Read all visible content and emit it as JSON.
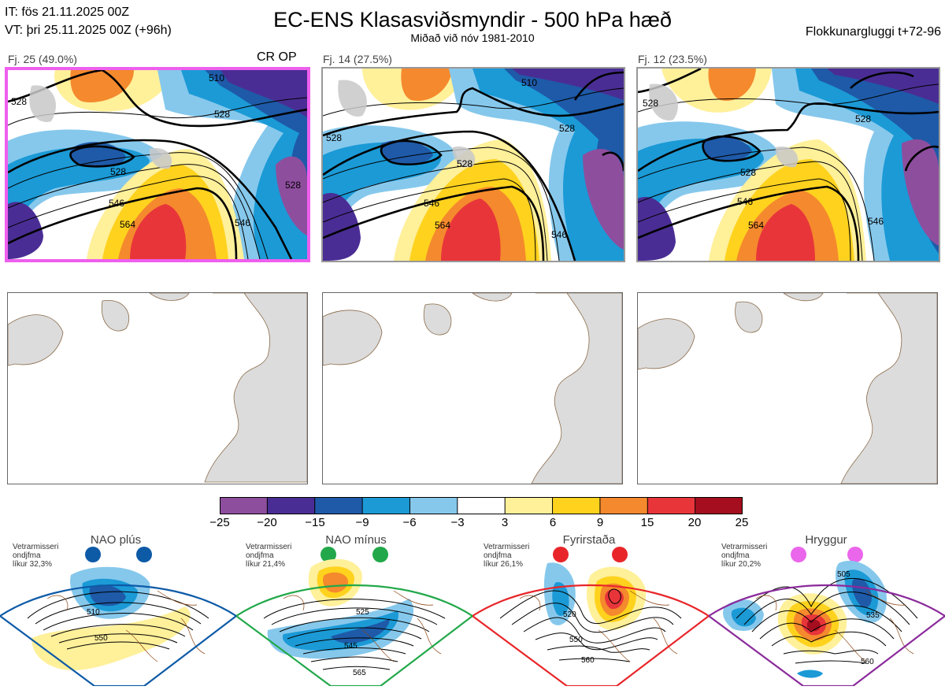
{
  "header": {
    "init_time": "IT: fös 21.11.2025 00Z",
    "valid_time": "VT: þri 25.11.2025 00Z  (+96h)",
    "title": "EC-ENS Klasasviðsmyndir - 500 hPa hæð",
    "subtitle": "Miðað við nóv 1981-2010",
    "window": "Flokkunargluggi t+72-96"
  },
  "clusters": [
    {
      "label": "Fj. 25 (49.0%)",
      "members": 25,
      "percent": 49.0,
      "selected": true,
      "tag": "CR OP",
      "contour_labels": [
        "510",
        "528",
        "528",
        "528",
        "546",
        "564",
        "546",
        "528"
      ]
    },
    {
      "label": "Fj. 14 (27.5%)",
      "members": 14,
      "percent": 27.5,
      "selected": false,
      "tag": "",
      "contour_labels": [
        "510",
        "528",
        "528",
        "546",
        "564",
        "546",
        "528"
      ]
    },
    {
      "label": "Fj. 12 (23.5%)",
      "members": 12,
      "percent": 23.5,
      "selected": false,
      "tag": "",
      "contour_labels": [
        "528",
        "528",
        "528",
        "546",
        "564",
        "546"
      ]
    }
  ],
  "colorbar": {
    "ticks": [
      "−25",
      "−20",
      "−15",
      "−9",
      "−6",
      "−3",
      "3",
      "6",
      "9",
      "15",
      "20",
      "25"
    ],
    "colors": [
      "#8e4e9e",
      "#4a2d94",
      "#1e5aa8",
      "#1b9ad6",
      "#86c8ec",
      "#ffffff",
      "#fff09a",
      "#ffd21e",
      "#f5892d",
      "#e8353a",
      "#a50e1e"
    ]
  },
  "regimes": [
    {
      "name": "NAO plús",
      "line1": "Vetrarmisseri",
      "line2": "ondjfma",
      "line3": "líkur 32,3%",
      "color": "#0d5aa7",
      "contour_labels": [
        "510",
        "550"
      ]
    },
    {
      "name": "NAO mínus",
      "line1": "Vetrarmisseri",
      "line2": "ondjfma",
      "line3": "líkur 21,4%",
      "color": "#22a84a",
      "contour_labels": [
        "525",
        "545",
        "565"
      ]
    },
    {
      "name": "Fyrirstaða",
      "line1": "Vetrarmisseri",
      "line2": "ondjfma",
      "line3": "líkur 26,1%",
      "color": "#e8262a",
      "contour_labels": [
        "520",
        "550",
        "560"
      ]
    },
    {
      "name": "Hryggur",
      "line1": "Vetrarmisseri",
      "line2": "ondjfma",
      "line3": "líkur 20,2%",
      "color": "#ea66ea",
      "contour_labels": [
        "505",
        "535",
        "560"
      ]
    }
  ]
}
